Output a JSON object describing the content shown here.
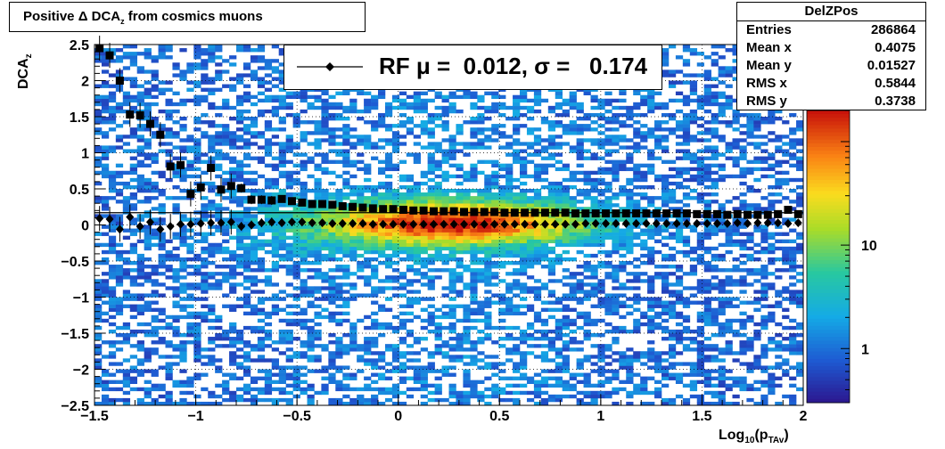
{
  "title": {
    "prefix": "Positive Δ DCA",
    "sub": "z",
    "suffix": " from cosmics muons"
  },
  "stats_box": {
    "name": "DelZPos",
    "rows": [
      {
        "key": "Entries",
        "value": "286864"
      },
      {
        "key": "Mean x",
        "value": "0.4075"
      },
      {
        "key": "Mean y",
        "value": "0.01527"
      },
      {
        "key": "RMS x",
        "value": "0.5844"
      },
      {
        "key": "RMS y",
        "value": "0.3738"
      }
    ]
  },
  "legend": {
    "text": "RF μ =  0.012, σ =   0.174",
    "marker": "diamond"
  },
  "axes": {
    "ylabel_main": "DCA",
    "ylabel_sub": "z",
    "xlabel_main": "Log",
    "xlabel_sub1": "10",
    "xlabel_mid": "(p",
    "xlabel_sub2": "TAv",
    "xlabel_end": ")"
  },
  "colors": {
    "frame": "#000000",
    "grid": "#000000"
  },
  "chart_data": {
    "type": "heatmap",
    "xlim": [
      -1.5,
      2
    ],
    "ylim": [
      -2.5,
      2.5
    ],
    "xticks": [
      "−1.5",
      "−1",
      "−0.5",
      "0",
      "0.5",
      "1",
      "1.5",
      "2"
    ],
    "xtick_values": [
      -1.5,
      -1,
      -0.5,
      0,
      0.5,
      1,
      1.5,
      2
    ],
    "yticks": [
      "2.5",
      "2",
      "1.5",
      "1",
      "0.5",
      "0",
      "−0.5",
      "−1",
      "−1.5",
      "−2",
      "−2.5"
    ],
    "ytick_values": [
      2.5,
      2,
      1.5,
      1,
      0.5,
      0,
      -0.5,
      -1,
      -1.5,
      -2,
      -2.5
    ],
    "colorbar_scale": "log",
    "colorbar_labels": [
      "10",
      "1"
    ],
    "colorbar_label_values": [
      10,
      1
    ],
    "grid": true,
    "series": [
      {
        "marker": "square",
        "points": [
          [
            -1.475,
            2.45
          ],
          [
            -1.425,
            2.35
          ],
          [
            -1.375,
            2.0
          ],
          [
            -1.325,
            1.53
          ],
          [
            -1.275,
            1.52
          ],
          [
            -1.225,
            1.4
          ],
          [
            -1.175,
            1.25
          ],
          [
            -1.125,
            0.81
          ],
          [
            -1.075,
            0.83
          ],
          [
            -1.025,
            0.43
          ],
          [
            -0.975,
            0.52
          ],
          [
            -0.925,
            0.79
          ],
          [
            -0.875,
            0.49
          ],
          [
            -0.825,
            0.54
          ],
          [
            -0.775,
            0.51
          ],
          [
            -0.725,
            0.35
          ],
          [
            -0.675,
            0.35
          ],
          [
            -0.625,
            0.34
          ],
          [
            -0.575,
            0.36
          ],
          [
            -0.525,
            0.33
          ],
          [
            -0.475,
            0.31
          ],
          [
            -0.425,
            0.29
          ],
          [
            -0.375,
            0.29
          ],
          [
            -0.325,
            0.28
          ],
          [
            -0.275,
            0.26
          ],
          [
            -0.225,
            0.25
          ],
          [
            -0.175,
            0.24
          ],
          [
            -0.125,
            0.23
          ],
          [
            -0.075,
            0.22
          ],
          [
            -0.025,
            0.22
          ],
          [
            0.025,
            0.21
          ],
          [
            0.075,
            0.2
          ],
          [
            0.125,
            0.2
          ],
          [
            0.175,
            0.19
          ],
          [
            0.225,
            0.19
          ],
          [
            0.275,
            0.19
          ],
          [
            0.325,
            0.18
          ],
          [
            0.375,
            0.18
          ],
          [
            0.425,
            0.18
          ],
          [
            0.475,
            0.18
          ],
          [
            0.525,
            0.17
          ],
          [
            0.575,
            0.17
          ],
          [
            0.625,
            0.17
          ],
          [
            0.675,
            0.17
          ],
          [
            0.725,
            0.17
          ],
          [
            0.775,
            0.17
          ],
          [
            0.825,
            0.17
          ],
          [
            0.875,
            0.16
          ],
          [
            0.925,
            0.16
          ],
          [
            0.975,
            0.16
          ],
          [
            1.025,
            0.16
          ],
          [
            1.075,
            0.16
          ],
          [
            1.125,
            0.16
          ],
          [
            1.175,
            0.16
          ],
          [
            1.225,
            0.16
          ],
          [
            1.275,
            0.16
          ],
          [
            1.325,
            0.16
          ],
          [
            1.375,
            0.16
          ],
          [
            1.425,
            0.16
          ],
          [
            1.475,
            0.15
          ],
          [
            1.525,
            0.15
          ],
          [
            1.575,
            0.15
          ],
          [
            1.625,
            0.14
          ],
          [
            1.675,
            0.15
          ],
          [
            1.725,
            0.14
          ],
          [
            1.775,
            0.14
          ],
          [
            1.825,
            0.14
          ],
          [
            1.875,
            0.15
          ],
          [
            1.925,
            0.21
          ],
          [
            1.975,
            0.15
          ]
        ]
      },
      {
        "marker": "diamond",
        "points": [
          [
            -1.475,
            0.09
          ],
          [
            -1.425,
            0.08
          ],
          [
            -1.375,
            -0.06
          ],
          [
            -1.325,
            0.11
          ],
          [
            -1.275,
            -0.02
          ],
          [
            -1.225,
            0.04
          ],
          [
            -1.175,
            -0.06
          ],
          [
            -1.125,
            -0.02
          ],
          [
            -1.075,
            0.01
          ],
          [
            -1.025,
            0.01
          ],
          [
            -0.975,
            0.02
          ],
          [
            -0.925,
            0.03
          ],
          [
            -0.875,
            0.03
          ],
          [
            -0.825,
            0.04
          ],
          [
            -0.775,
            -0.02
          ],
          [
            -0.725,
            0.0
          ],
          [
            -0.675,
            0.03
          ],
          [
            -0.625,
            0.04
          ],
          [
            -0.575,
            0.03
          ],
          [
            -0.525,
            0.04
          ],
          [
            -0.475,
            0.04
          ],
          [
            -0.425,
            0.03
          ],
          [
            -0.375,
            0.03
          ],
          [
            -0.325,
            0.02
          ],
          [
            -0.275,
            0.02
          ],
          [
            -0.225,
            0.02
          ],
          [
            -0.175,
            0.02
          ],
          [
            -0.125,
            0.01
          ],
          [
            -0.075,
            0.01
          ],
          [
            -0.025,
            0.01
          ],
          [
            0.025,
            0.01
          ],
          [
            0.075,
            0.01
          ],
          [
            0.125,
            0.01
          ],
          [
            0.175,
            0.01
          ],
          [
            0.225,
            0.01
          ],
          [
            0.275,
            0.01
          ],
          [
            0.325,
            0.01
          ],
          [
            0.375,
            0.01
          ],
          [
            0.425,
            0.01
          ],
          [
            0.475,
            0.01
          ],
          [
            0.525,
            0.01
          ],
          [
            0.575,
            0.01
          ],
          [
            0.625,
            0.01
          ],
          [
            0.675,
            0.01
          ],
          [
            0.725,
            0.01
          ],
          [
            0.775,
            0.01
          ],
          [
            0.825,
            0.01
          ],
          [
            0.875,
            0.01
          ],
          [
            0.925,
            0.02
          ],
          [
            0.975,
            0.02
          ],
          [
            1.025,
            0.02
          ],
          [
            1.075,
            0.02
          ],
          [
            1.125,
            0.02
          ],
          [
            1.175,
            0.02
          ],
          [
            1.225,
            0.02
          ],
          [
            1.275,
            0.02
          ],
          [
            1.325,
            0.02
          ],
          [
            1.375,
            0.02
          ],
          [
            1.425,
            0.02
          ],
          [
            1.475,
            0.02
          ],
          [
            1.525,
            0.02
          ],
          [
            1.575,
            0.02
          ],
          [
            1.625,
            0.02
          ],
          [
            1.675,
            0.03
          ],
          [
            1.725,
            0.02
          ],
          [
            1.775,
            0.03
          ],
          [
            1.825,
            0.03
          ],
          [
            1.875,
            0.03
          ],
          [
            1.925,
            0.02
          ],
          [
            1.975,
            0.03
          ]
        ]
      }
    ]
  }
}
